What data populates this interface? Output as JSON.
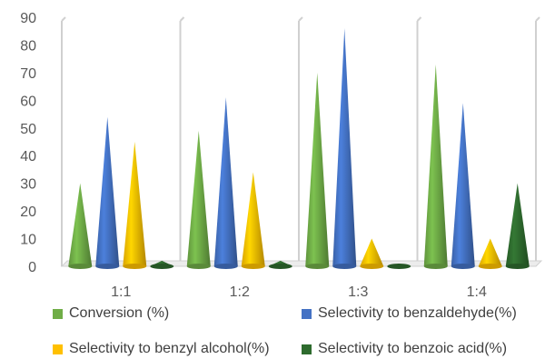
{
  "chart_data": {
    "type": "bar",
    "style": "3d-cone",
    "categories": [
      "1:1",
      "1:2",
      "1:3",
      "1:4"
    ],
    "series": [
      {
        "name": "Conversion (%)",
        "color": "#70ad47",
        "values": [
          30,
          49,
          70,
          73
        ]
      },
      {
        "name": "Selectivity to benzaldehyde(%)",
        "color": "#4472c4",
        "values": [
          54,
          61,
          86,
          59
        ]
      },
      {
        "name": "Selectivity to benzyl alcohol(%)",
        "color": "#ffc000",
        "values": [
          45,
          34,
          10,
          10
        ]
      },
      {
        "name": "Selectivity to benzoic acid(%)",
        "color": "#2e6b2e",
        "values": [
          2,
          2,
          1,
          30
        ]
      }
    ],
    "yticks": [
      "0",
      "10",
      "20",
      "30",
      "40",
      "50",
      "60",
      "70",
      "80",
      "90"
    ],
    "ylim": [
      0,
      90
    ],
    "title": "",
    "xlabel": "",
    "ylabel": "",
    "gridlines": false,
    "legend_position": "bottom"
  }
}
